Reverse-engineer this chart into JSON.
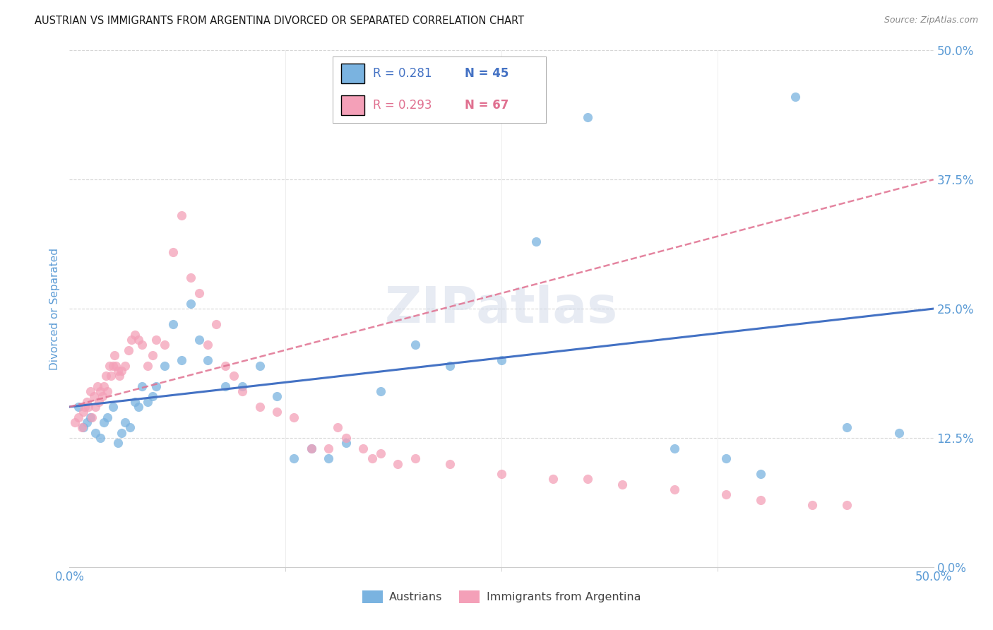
{
  "title": "AUSTRIAN VS IMMIGRANTS FROM ARGENTINA DIVORCED OR SEPARATED CORRELATION CHART",
  "source": "Source: ZipAtlas.com",
  "ylabel": "Divorced or Separated",
  "xlim": [
    0.0,
    0.5
  ],
  "ylim": [
    0.0,
    0.5
  ],
  "ytick_positions": [
    0.0,
    0.125,
    0.25,
    0.375,
    0.5
  ],
  "xtick_positions": [
    0.0,
    0.5
  ],
  "xtick_minor_positions": [
    0.125,
    0.25,
    0.375
  ],
  "legend_r_blue": "R = 0.281",
  "legend_n_blue": "N = 45",
  "legend_r_pink": "R = 0.293",
  "legend_n_pink": "N = 67",
  "blue_color": "#7ab3e0",
  "pink_color": "#f4a0b8",
  "blue_line_color": "#4472c4",
  "pink_line_color": "#e07090",
  "tick_label_color": "#5b9bd5",
  "grid_color": "#cccccc",
  "watermark": "ZIPatlas",
  "blue_scatter_x": [
    0.005,
    0.008,
    0.01,
    0.012,
    0.015,
    0.018,
    0.02,
    0.022,
    0.025,
    0.028,
    0.03,
    0.032,
    0.035,
    0.038,
    0.04,
    0.042,
    0.045,
    0.048,
    0.05,
    0.055,
    0.06,
    0.065,
    0.07,
    0.075,
    0.08,
    0.09,
    0.1,
    0.11,
    0.12,
    0.13,
    0.14,
    0.15,
    0.16,
    0.18,
    0.2,
    0.22,
    0.25,
    0.27,
    0.3,
    0.35,
    0.38,
    0.4,
    0.42,
    0.45,
    0.48
  ],
  "blue_scatter_y": [
    0.155,
    0.135,
    0.14,
    0.145,
    0.13,
    0.125,
    0.14,
    0.145,
    0.155,
    0.12,
    0.13,
    0.14,
    0.135,
    0.16,
    0.155,
    0.175,
    0.16,
    0.165,
    0.175,
    0.195,
    0.235,
    0.2,
    0.255,
    0.22,
    0.2,
    0.175,
    0.175,
    0.195,
    0.165,
    0.105,
    0.115,
    0.105,
    0.12,
    0.17,
    0.215,
    0.195,
    0.2,
    0.315,
    0.435,
    0.115,
    0.105,
    0.09,
    0.455,
    0.135,
    0.13
  ],
  "pink_scatter_x": [
    0.003,
    0.005,
    0.007,
    0.008,
    0.009,
    0.01,
    0.011,
    0.012,
    0.013,
    0.014,
    0.015,
    0.016,
    0.017,
    0.018,
    0.019,
    0.02,
    0.021,
    0.022,
    0.023,
    0.024,
    0.025,
    0.026,
    0.027,
    0.028,
    0.029,
    0.03,
    0.032,
    0.034,
    0.036,
    0.038,
    0.04,
    0.042,
    0.045,
    0.048,
    0.05,
    0.055,
    0.06,
    0.065,
    0.07,
    0.075,
    0.08,
    0.085,
    0.09,
    0.095,
    0.1,
    0.11,
    0.12,
    0.13,
    0.14,
    0.15,
    0.155,
    0.16,
    0.17,
    0.175,
    0.18,
    0.19,
    0.2,
    0.22,
    0.25,
    0.28,
    0.3,
    0.32,
    0.35,
    0.38,
    0.4,
    0.43,
    0.45
  ],
  "pink_scatter_y": [
    0.14,
    0.145,
    0.135,
    0.15,
    0.155,
    0.16,
    0.155,
    0.17,
    0.145,
    0.165,
    0.155,
    0.175,
    0.16,
    0.17,
    0.165,
    0.175,
    0.185,
    0.17,
    0.195,
    0.185,
    0.195,
    0.205,
    0.195,
    0.19,
    0.185,
    0.19,
    0.195,
    0.21,
    0.22,
    0.225,
    0.22,
    0.215,
    0.195,
    0.205,
    0.22,
    0.215,
    0.305,
    0.34,
    0.28,
    0.265,
    0.215,
    0.235,
    0.195,
    0.185,
    0.17,
    0.155,
    0.15,
    0.145,
    0.115,
    0.115,
    0.135,
    0.125,
    0.115,
    0.105,
    0.11,
    0.1,
    0.105,
    0.1,
    0.09,
    0.085,
    0.085,
    0.08,
    0.075,
    0.07,
    0.065,
    0.06,
    0.06
  ]
}
